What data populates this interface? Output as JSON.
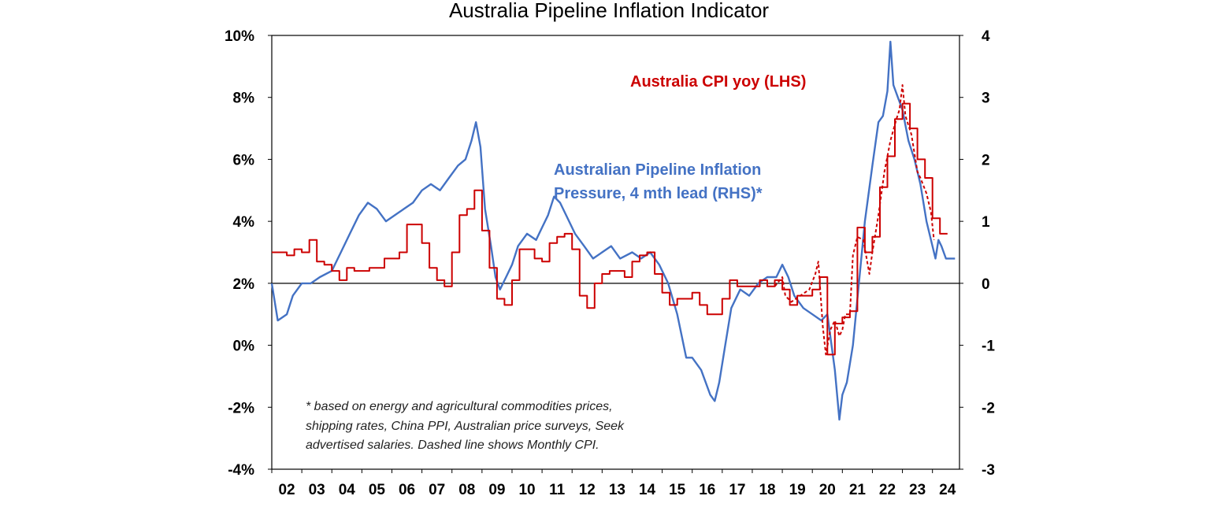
{
  "chart_data": {
    "type": "line",
    "title": "Australia Pipeline Inflation Indicator",
    "x_tick_labels": [
      "02",
      "03",
      "04",
      "05",
      "06",
      "07",
      "08",
      "09",
      "10",
      "11",
      "12",
      "13",
      "14",
      "15",
      "16",
      "17",
      "18",
      "19",
      "20",
      "21",
      "22",
      "23",
      "24"
    ],
    "x_range": [
      2002.0,
      2024.9
    ],
    "y_left": {
      "ticks": [
        "10%",
        "8%",
        "6%",
        "4%",
        "2%",
        "0%",
        "-2%",
        "-4%"
      ],
      "range": [
        -4,
        10
      ]
    },
    "y_right": {
      "ticks": [
        "4",
        "3",
        "2",
        "1",
        "0",
        "-1",
        "-2",
        "-3"
      ],
      "range": [
        -3,
        4
      ]
    },
    "grid": false,
    "series": [
      {
        "name": "Australia CPI yoy (LHS)",
        "axis": "left",
        "color": "#cc0000",
        "style": "step",
        "points": [
          [
            2002.0,
            3.0
          ],
          [
            2002.5,
            2.9
          ],
          [
            2002.75,
            3.1
          ],
          [
            2003.0,
            3.0
          ],
          [
            2003.25,
            3.4
          ],
          [
            2003.5,
            2.7
          ],
          [
            2003.75,
            2.6
          ],
          [
            2004.0,
            2.4
          ],
          [
            2004.25,
            2.1
          ],
          [
            2004.5,
            2.5
          ],
          [
            2004.75,
            2.4
          ],
          [
            2005.0,
            2.4
          ],
          [
            2005.25,
            2.5
          ],
          [
            2005.5,
            2.5
          ],
          [
            2005.75,
            2.8
          ],
          [
            2006.0,
            2.8
          ],
          [
            2006.25,
            3.0
          ],
          [
            2006.5,
            3.9
          ],
          [
            2006.75,
            3.9
          ],
          [
            2007.0,
            3.3
          ],
          [
            2007.25,
            2.5
          ],
          [
            2007.5,
            2.1
          ],
          [
            2007.75,
            1.9
          ],
          [
            2008.0,
            3.0
          ],
          [
            2008.25,
            4.2
          ],
          [
            2008.5,
            4.4
          ],
          [
            2008.75,
            5.0
          ],
          [
            2009.0,
            3.7
          ],
          [
            2009.25,
            2.5
          ],
          [
            2009.5,
            1.5
          ],
          [
            2009.75,
            1.3
          ],
          [
            2010.0,
            2.1
          ],
          [
            2010.25,
            3.1
          ],
          [
            2010.5,
            3.1
          ],
          [
            2010.75,
            2.8
          ],
          [
            2011.0,
            2.7
          ],
          [
            2011.25,
            3.3
          ],
          [
            2011.5,
            3.5
          ],
          [
            2011.75,
            3.6
          ],
          [
            2012.0,
            3.1
          ],
          [
            2012.25,
            1.6
          ],
          [
            2012.5,
            1.2
          ],
          [
            2012.75,
            2.0
          ],
          [
            2013.0,
            2.3
          ],
          [
            2013.25,
            2.4
          ],
          [
            2013.5,
            2.4
          ],
          [
            2013.75,
            2.2
          ],
          [
            2014.0,
            2.7
          ],
          [
            2014.25,
            2.9
          ],
          [
            2014.5,
            3.0
          ],
          [
            2014.75,
            2.3
          ],
          [
            2015.0,
            1.7
          ],
          [
            2015.25,
            1.3
          ],
          [
            2015.5,
            1.5
          ],
          [
            2015.75,
            1.5
          ],
          [
            2016.0,
            1.7
          ],
          [
            2016.25,
            1.3
          ],
          [
            2016.5,
            1.0
          ],
          [
            2016.75,
            1.0
          ],
          [
            2017.0,
            1.5
          ],
          [
            2017.25,
            2.1
          ],
          [
            2017.5,
            1.9
          ],
          [
            2017.75,
            1.9
          ],
          [
            2018.0,
            1.9
          ],
          [
            2018.25,
            2.1
          ],
          [
            2018.5,
            1.9
          ],
          [
            2018.75,
            2.1
          ],
          [
            2019.0,
            1.8
          ],
          [
            2019.25,
            1.3
          ],
          [
            2019.5,
            1.6
          ],
          [
            2019.75,
            1.6
          ],
          [
            2020.0,
            1.8
          ],
          [
            2020.25,
            2.2
          ],
          [
            2020.5,
            -0.3
          ],
          [
            2020.75,
            0.7
          ],
          [
            2021.0,
            0.9
          ],
          [
            2021.25,
            1.1
          ],
          [
            2021.5,
            3.8
          ],
          [
            2021.75,
            3.0
          ],
          [
            2022.0,
            3.5
          ],
          [
            2022.25,
            5.1
          ],
          [
            2022.5,
            6.1
          ],
          [
            2022.75,
            7.3
          ],
          [
            2023.0,
            7.8
          ],
          [
            2023.25,
            7.0
          ],
          [
            2023.5,
            6.0
          ],
          [
            2023.75,
            5.4
          ],
          [
            2024.0,
            4.1
          ],
          [
            2024.25,
            3.6
          ]
        ]
      },
      {
        "name": "Monthly CPI",
        "axis": "left",
        "color": "#cc0000",
        "style": "dashed",
        "points": [
          [
            2018.75,
            1.9
          ],
          [
            2019.0,
            2.2
          ],
          [
            2019.1,
            1.6
          ],
          [
            2019.3,
            1.4
          ],
          [
            2019.6,
            1.6
          ],
          [
            2019.9,
            1.8
          ],
          [
            2020.1,
            2.3
          ],
          [
            2020.2,
            2.7
          ],
          [
            2020.35,
            0.6
          ],
          [
            2020.45,
            -0.3
          ],
          [
            2020.6,
            0.5
          ],
          [
            2020.75,
            0.8
          ],
          [
            2020.9,
            0.3
          ],
          [
            2021.0,
            0.5
          ],
          [
            2021.1,
            1.0
          ],
          [
            2021.25,
            1.0
          ],
          [
            2021.35,
            2.9
          ],
          [
            2021.5,
            3.5
          ],
          [
            2021.7,
            3.4
          ],
          [
            2021.9,
            2.3
          ],
          [
            2022.0,
            3.0
          ],
          [
            2022.2,
            4.2
          ],
          [
            2022.4,
            5.6
          ],
          [
            2022.6,
            6.6
          ],
          [
            2022.8,
            7.3
          ],
          [
            2022.9,
            7.6
          ],
          [
            2023.0,
            8.4
          ],
          [
            2023.1,
            7.4
          ],
          [
            2023.3,
            6.8
          ],
          [
            2023.5,
            5.6
          ],
          [
            2023.6,
            5.4
          ],
          [
            2023.8,
            4.9
          ],
          [
            2023.95,
            4.3
          ],
          [
            2024.05,
            3.4
          ]
        ]
      },
      {
        "name": "Australian Pipeline Inflation Pressure, 4 mth lead (RHS)*",
        "axis": "right",
        "color": "#4472c4",
        "style": "solid",
        "points": [
          [
            2002.0,
            0.0
          ],
          [
            2002.2,
            -0.6
          ],
          [
            2002.5,
            -0.5
          ],
          [
            2002.7,
            -0.2
          ],
          [
            2003.0,
            0.0
          ],
          [
            2003.3,
            0.0
          ],
          [
            2003.6,
            0.1
          ],
          [
            2004.0,
            0.2
          ],
          [
            2004.3,
            0.5
          ],
          [
            2004.6,
            0.8
          ],
          [
            2004.9,
            1.1
          ],
          [
            2005.2,
            1.3
          ],
          [
            2005.5,
            1.2
          ],
          [
            2005.8,
            1.0
          ],
          [
            2006.1,
            1.1
          ],
          [
            2006.4,
            1.2
          ],
          [
            2006.7,
            1.3
          ],
          [
            2007.0,
            1.5
          ],
          [
            2007.3,
            1.6
          ],
          [
            2007.6,
            1.5
          ],
          [
            2007.9,
            1.7
          ],
          [
            2008.2,
            1.9
          ],
          [
            2008.45,
            2.0
          ],
          [
            2008.65,
            2.3
          ],
          [
            2008.8,
            2.6
          ],
          [
            2008.95,
            2.2
          ],
          [
            2009.1,
            1.2
          ],
          [
            2009.3,
            0.6
          ],
          [
            2009.45,
            0.1
          ],
          [
            2009.6,
            -0.1
          ],
          [
            2009.8,
            0.1
          ],
          [
            2010.0,
            0.3
          ],
          [
            2010.2,
            0.6
          ],
          [
            2010.5,
            0.8
          ],
          [
            2010.8,
            0.7
          ],
          [
            2011.0,
            0.9
          ],
          [
            2011.2,
            1.1
          ],
          [
            2011.4,
            1.4
          ],
          [
            2011.6,
            1.3
          ],
          [
            2011.9,
            1.0
          ],
          [
            2012.1,
            0.8
          ],
          [
            2012.4,
            0.6
          ],
          [
            2012.7,
            0.4
          ],
          [
            2013.0,
            0.5
          ],
          [
            2013.3,
            0.6
          ],
          [
            2013.6,
            0.4
          ],
          [
            2014.0,
            0.5
          ],
          [
            2014.3,
            0.4
          ],
          [
            2014.6,
            0.5
          ],
          [
            2014.9,
            0.3
          ],
          [
            2015.2,
            0.0
          ],
          [
            2015.5,
            -0.5
          ],
          [
            2015.8,
            -1.2
          ],
          [
            2016.0,
            -1.2
          ],
          [
            2016.3,
            -1.4
          ],
          [
            2016.6,
            -1.8
          ],
          [
            2016.75,
            -1.9
          ],
          [
            2016.9,
            -1.6
          ],
          [
            2017.1,
            -1.0
          ],
          [
            2017.3,
            -0.4
          ],
          [
            2017.6,
            -0.1
          ],
          [
            2017.9,
            -0.2
          ],
          [
            2018.2,
            0.0
          ],
          [
            2018.5,
            0.1
          ],
          [
            2018.8,
            0.1
          ],
          [
            2019.0,
            0.3
          ],
          [
            2019.2,
            0.1
          ],
          [
            2019.4,
            -0.2
          ],
          [
            2019.7,
            -0.4
          ],
          [
            2020.0,
            -0.5
          ],
          [
            2020.3,
            -0.6
          ],
          [
            2020.5,
            -0.5
          ],
          [
            2020.75,
            -1.4
          ],
          [
            2020.9,
            -2.2
          ],
          [
            2021.0,
            -1.8
          ],
          [
            2021.15,
            -1.6
          ],
          [
            2021.35,
            -1.0
          ],
          [
            2021.55,
            0.0
          ],
          [
            2021.75,
            1.0
          ],
          [
            2022.0,
            1.9
          ],
          [
            2022.2,
            2.6
          ],
          [
            2022.35,
            2.7
          ],
          [
            2022.5,
            3.1
          ],
          [
            2022.6,
            3.9
          ],
          [
            2022.7,
            3.2
          ],
          [
            2022.85,
            3.0
          ],
          [
            2023.0,
            2.8
          ],
          [
            2023.2,
            2.3
          ],
          [
            2023.4,
            2.0
          ],
          [
            2023.6,
            1.6
          ],
          [
            2023.8,
            1.0
          ],
          [
            2024.0,
            0.6
          ],
          [
            2024.1,
            0.4
          ],
          [
            2024.2,
            0.7
          ],
          [
            2024.3,
            0.6
          ],
          [
            2024.45,
            0.4
          ],
          [
            2024.6,
            0.4
          ],
          [
            2024.75,
            0.4
          ]
        ]
      }
    ],
    "labels": {
      "cpi_label": "Australia CPI yoy (LHS)",
      "pipeline_label_line1": "Australian Pipeline Inflation",
      "pipeline_label_line2": "Pressure, 4 mth lead (RHS)*"
    },
    "note": [
      "* based on energy and agricultural commodities prices,",
      "shipping rates, China PPI, Australian price surveys, Seek",
      "advertised salaries. Dashed line shows Monthly CPI."
    ]
  }
}
